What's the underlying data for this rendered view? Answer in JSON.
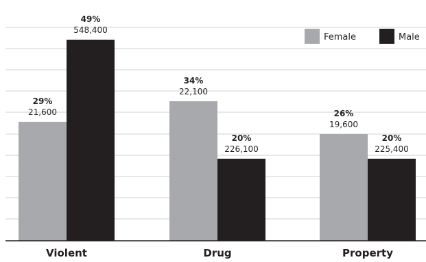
{
  "chart_data": {
    "type": "bar",
    "categories": [
      "Violent",
      "Drug",
      "Property"
    ],
    "series": [
      {
        "name": "Female",
        "color": "#a7a9ac",
        "values": [
          29,
          34,
          26
        ],
        "value_labels": [
          "29%",
          "34%",
          "26%"
        ],
        "count_labels": [
          "21,600",
          "22,100",
          "19,600"
        ]
      },
      {
        "name": "Male",
        "color": "#231f20",
        "values": [
          49,
          20,
          20
        ],
        "value_labels": [
          "49%",
          "20%",
          "20%"
        ],
        "count_labels": [
          "548,400",
          "226,100",
          "225,400"
        ]
      }
    ],
    "unit": "%",
    "ylim": [
      0,
      52
    ],
    "grid": true,
    "gridline_color": "#cfd0d2",
    "legend_position": "top-right",
    "title": "",
    "xlabel": "",
    "ylabel": ""
  }
}
